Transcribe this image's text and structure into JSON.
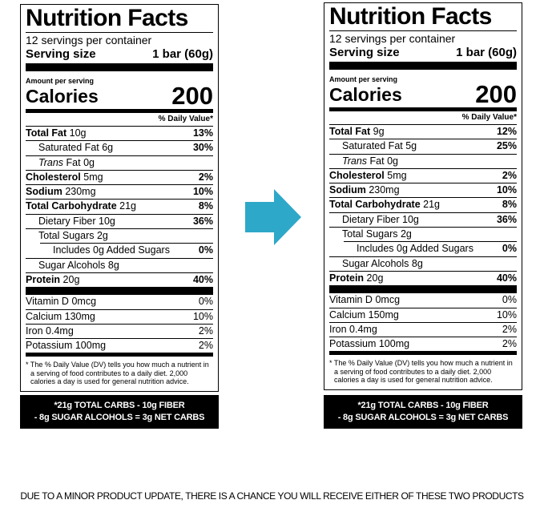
{
  "labels": [
    {
      "title": "Nutrition Facts",
      "servings": "12 servings per container",
      "serving_size_label": "Serving size",
      "serving_size": "1 bar (60g)",
      "amount_per_serving": "Amount per serving",
      "calories_label": "Calories",
      "calories": "200",
      "daily_value_header": "% Daily Value*",
      "nutrients": [
        {
          "name": "Total Fat",
          "amount": "10g",
          "dv": "13%",
          "sub": [
            {
              "name": "Saturated Fat",
              "amount": "6g",
              "dv": "30%"
            },
            {
              "name_italic": "Trans",
              "name": "Fat",
              "amount": "0g"
            }
          ]
        },
        {
          "name": "Cholesterol",
          "amount": "5mg",
          "dv": "2%"
        },
        {
          "name": "Sodium",
          "amount": "230mg",
          "dv": "10%"
        },
        {
          "name": "Total Carbohydrate",
          "amount": "21g",
          "dv": "8%",
          "sub": [
            {
              "name": "Dietary Fiber",
              "amount": "10g",
              "dv": "36%"
            },
            {
              "name": "Total Sugars",
              "amount": "2g",
              "sub": [
                {
                  "name": "Includes 0g Added Sugars",
                  "dv": "0%"
                }
              ]
            },
            {
              "name": "Sugar Alcohols",
              "amount": "8g"
            }
          ]
        },
        {
          "name": "Protein",
          "amount": "20g",
          "dv": "40%"
        }
      ],
      "vitamins": [
        {
          "name": "Vitamin D",
          "amount": "0mcg",
          "dv": "0%"
        },
        {
          "name": "Calcium",
          "amount": "130mg",
          "dv": "10%"
        },
        {
          "name": "Iron",
          "amount": "0.4mg",
          "dv": "2%"
        },
        {
          "name": "Potassium",
          "amount": "100mg",
          "dv": "2%"
        }
      ],
      "footnote": "* The % Daily Value (DV) tells you how much a nutrient in a serving of food contributes to a daily diet. 2,000 calories a day is used for general nutrition advice.",
      "net_carbs": [
        "*21g TOTAL CARBS - 10g FIBER",
        "- 8g SUGAR ALCOHOLS = 3g NET CARBS"
      ]
    },
    {
      "title": "Nutrition Facts",
      "servings": "12 servings per container",
      "serving_size_label": "Serving size",
      "serving_size": "1 bar (60g)",
      "amount_per_serving": "Amount per serving",
      "calories_label": "Calories",
      "calories": "200",
      "daily_value_header": "% Daily Value*",
      "nutrients": [
        {
          "name": "Total Fat",
          "amount": "9g",
          "dv": "12%",
          "sub": [
            {
              "name": "Saturated Fat",
              "amount": "5g",
              "dv": "25%"
            },
            {
              "name_italic": "Trans",
              "name": "Fat",
              "amount": "0g"
            }
          ]
        },
        {
          "name": "Cholesterol",
          "amount": "5mg",
          "dv": "2%"
        },
        {
          "name": "Sodium",
          "amount": "230mg",
          "dv": "10%"
        },
        {
          "name": "Total Carbohydrate",
          "amount": "21g",
          "dv": "8%",
          "sub": [
            {
              "name": "Dietary Fiber",
              "amount": "10g",
              "dv": "36%"
            },
            {
              "name": "Total Sugars",
              "amount": "2g",
              "sub": [
                {
                  "name": "Includes 0g Added Sugars",
                  "dv": "0%"
                }
              ]
            },
            {
              "name": "Sugar Alcohols",
              "amount": "8g"
            }
          ]
        },
        {
          "name": "Protein",
          "amount": "20g",
          "dv": "40%"
        }
      ],
      "vitamins": [
        {
          "name": "Vitamin D",
          "amount": "0mcg",
          "dv": "0%"
        },
        {
          "name": "Calcium",
          "amount": "150mg",
          "dv": "10%"
        },
        {
          "name": "Iron",
          "amount": "0.4mg",
          "dv": "2%"
        },
        {
          "name": "Potassium",
          "amount": "100mg",
          "dv": "2%"
        }
      ],
      "footnote": "* The % Daily Value (DV) tells you how much a nutrient in a serving of food contributes to a daily diet. 2,000 calories a day is used for general nutrition advice.",
      "net_carbs": [
        "*21g TOTAL CARBS - 10g FIBER",
        "- 8g SUGAR ALCOHOLS = 3g NET CARBS"
      ]
    }
  ],
  "notice": "DUE TO A MINOR PRODUCT UPDATE, THERE IS A CHANCE YOU WILL RECEIVE EITHER OF THESE TWO PRODUCTS"
}
